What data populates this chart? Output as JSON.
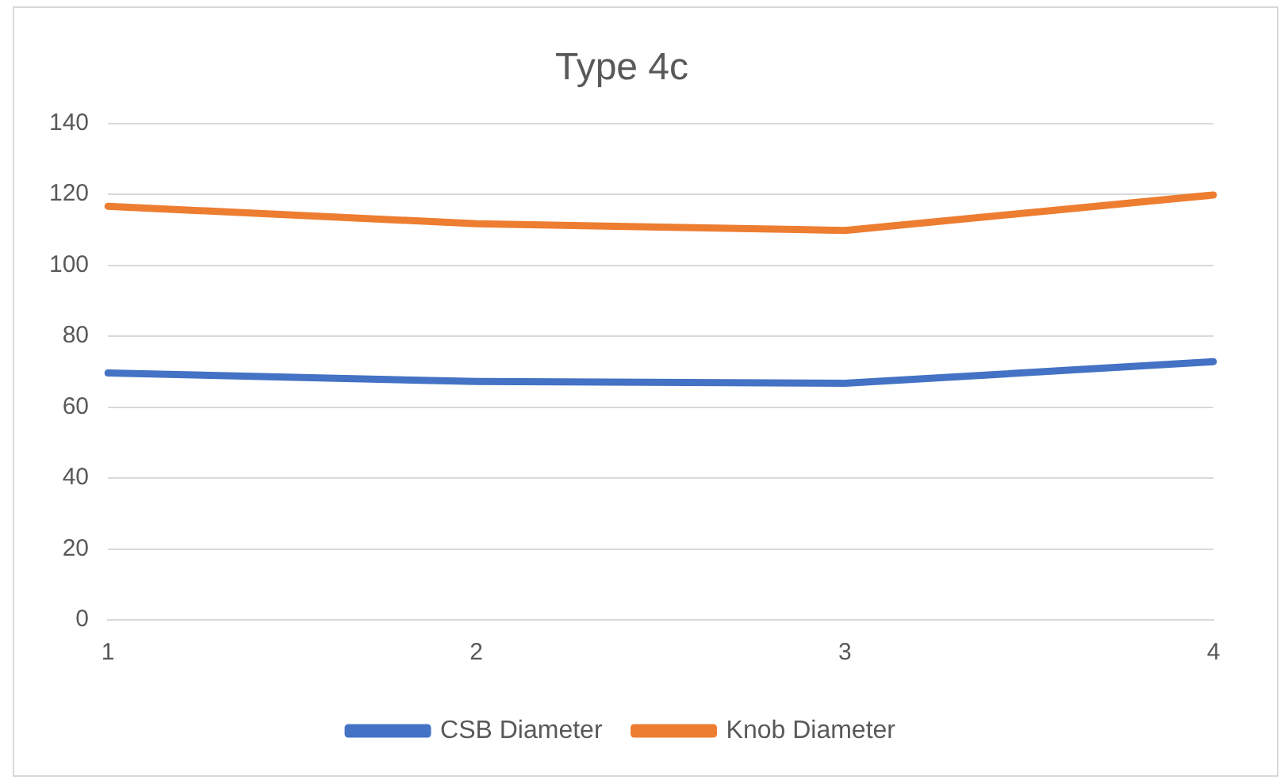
{
  "chart_data": {
    "type": "line",
    "title": "Type 4c",
    "categories": [
      "1",
      "2",
      "3",
      "4"
    ],
    "series": [
      {
        "name": "CSB Diameter",
        "color": "#4472c4",
        "values": [
          69.6,
          67.2,
          66.7,
          72.8
        ]
      },
      {
        "name": "Knob Diameter",
        "color": "#ed7d31",
        "values": [
          116.6,
          111.7,
          109.8,
          119.8
        ]
      }
    ],
    "ylim": [
      0,
      140
    ],
    "yticks": [
      0,
      20,
      40,
      60,
      80,
      100,
      120,
      140
    ],
    "grid": "y",
    "legend": "bottom",
    "marker": "none",
    "line_style": "solid"
  }
}
